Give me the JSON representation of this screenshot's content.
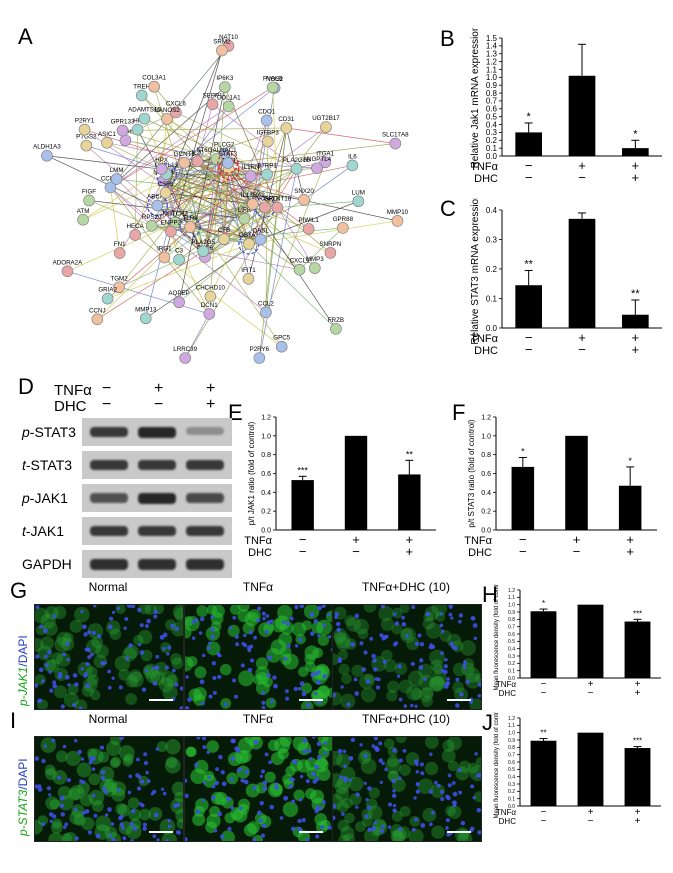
{
  "panels": {
    "A": {
      "letter": "A",
      "nodes": [
        "PYCARD",
        "NOTCH3",
        "PLCG2",
        "GSTA1",
        "NR1H4",
        "B7RP1",
        "TLR8",
        "IL20",
        "LIFR",
        "ABCA1",
        "JAK1",
        "GBP6",
        "CXCL13",
        "IL13RA2",
        "ENPP2",
        "ST6GALNAC1",
        "OASL",
        "CSF3",
        "IL1RN",
        "PLA2G5",
        "GCNT1",
        "GALNT18",
        "RPS20",
        "STAT3",
        "CFB",
        "HPX",
        "PLA2G1B",
        "IRG1",
        "CXCL6",
        "CXCL1",
        "CCL20",
        "CD31",
        "DCN1",
        "HP",
        "SNX20",
        "HECA",
        "IP6K3",
        "CCL2",
        "PTGS2",
        "ITGA1",
        "C3",
        "NANOS2",
        "PIWIL1",
        "ATM",
        "NOS2",
        "IFIT1",
        "CFH",
        "IL6",
        "TGM2",
        "SEPP1",
        "MMP3",
        "LMM",
        "IGFBP3",
        "AQPEP",
        "TREH",
        "MMP10",
        "FN1",
        "COL1A1",
        "GPC5",
        "ASIC1",
        "ANGPTL4",
        "MMP13",
        "COL3A1",
        "SNRPN",
        "FIGF",
        "CDO1",
        "CHCHD10",
        "GPR133",
        "LUM",
        "CCNJ",
        "NAT10",
        "FRZB",
        "ALDH1A3",
        "UGT2B17",
        "LRRC39",
        "ADAMTS15",
        "GPR88",
        "ADORA2A",
        "PVALB",
        "P2RY6",
        "P2RY1",
        "SLC17A8",
        "GRIA2",
        "SRM2"
      ]
    },
    "B": {
      "letter": "B",
      "chart_data": {
        "type": "bar",
        "ylabel": "Relative Jak1 mRNA expression",
        "ylim": [
          0,
          1.5
        ],
        "yticks": [
          "0.0",
          "0.1",
          "0.2",
          "0.3",
          "0.4",
          "0.5",
          "0.6",
          "0.7",
          "0.8",
          "0.9",
          "1.0",
          "1.1",
          "1.2",
          "1.3",
          "1.4",
          "1.5"
        ],
        "values": [
          0.3,
          1.02,
          0.1
        ],
        "errors": [
          0.12,
          0.4,
          0.1
        ],
        "sig": [
          "*",
          "",
          "*"
        ],
        "rows": [
          {
            "name": "TNFα",
            "signs": [
              "−",
              "+",
              "+"
            ]
          },
          {
            "name": "DHC",
            "signs": [
              "−",
              "−",
              "+"
            ]
          }
        ]
      }
    },
    "C": {
      "letter": "C",
      "chart_data": {
        "type": "bar",
        "ylabel": "Relative STAT3 mRNA expression",
        "ylim": [
          0,
          0.4
        ],
        "yticks": [
          "0.0",
          "0.1",
          "0.2",
          "0.3",
          "0.4"
        ],
        "values": [
          0.145,
          0.37,
          0.045
        ],
        "errors": [
          0.05,
          0.02,
          0.05
        ],
        "sig": [
          "**",
          "",
          "**"
        ],
        "rows": [
          {
            "name": "TNFα",
            "signs": [
              "−",
              "+",
              "+"
            ]
          },
          {
            "name": "DHC",
            "signs": [
              "−",
              "−",
              "+"
            ]
          }
        ]
      }
    },
    "D": {
      "letter": "D",
      "rows_header": [
        {
          "name": "TNFα",
          "signs": [
            "−",
            "+",
            "+"
          ]
        },
        {
          "name": "DHC",
          "signs": [
            "−",
            "−",
            "+"
          ]
        }
      ],
      "blots": [
        {
          "pre": "p",
          "name": "-STAT3",
          "intensity": [
            0.85,
            0.95,
            0.35
          ]
        },
        {
          "pre": "t",
          "name": "-STAT3",
          "intensity": [
            0.85,
            0.85,
            0.85
          ]
        },
        {
          "pre": "p",
          "name": "-JAK1",
          "intensity": [
            0.7,
            0.95,
            0.75
          ]
        },
        {
          "pre": "t",
          "name": "-JAK1",
          "intensity": [
            0.85,
            0.85,
            0.85
          ]
        },
        {
          "pre": "",
          "name": "GAPDH",
          "intensity": [
            0.9,
            0.9,
            0.9
          ]
        }
      ]
    },
    "E": {
      "letter": "E",
      "chart_data": {
        "type": "bar",
        "ylabel": "p/t JAK1 ratio (fold of control)",
        "ylim": [
          0,
          1.2
        ],
        "yticks": [
          "0.0",
          "0.2",
          "0.4",
          "0.6",
          "0.8",
          "1.0",
          "1.2"
        ],
        "values": [
          0.53,
          1.0,
          0.59
        ],
        "errors": [
          0.04,
          0.0,
          0.15
        ],
        "sig": [
          "***",
          "",
          "**"
        ],
        "rows": [
          {
            "name": "TNFα",
            "signs": [
              "−",
              "+",
              "+"
            ]
          },
          {
            "name": "DHC",
            "signs": [
              "−",
              "−",
              "+"
            ]
          }
        ]
      }
    },
    "F": {
      "letter": "F",
      "chart_data": {
        "type": "bar",
        "ylabel": "p/t STAT3 ratio (fold of control)",
        "ylim": [
          0,
          1.2
        ],
        "yticks": [
          "0.0",
          "0.2",
          "0.4",
          "0.6",
          "0.8",
          "1.0",
          "1.2"
        ],
        "values": [
          0.67,
          1.0,
          0.47
        ],
        "errors": [
          0.1,
          0.0,
          0.2
        ],
        "sig": [
          "*",
          "",
          "*"
        ],
        "rows": [
          {
            "name": "TNFα",
            "signs": [
              "−",
              "+",
              "+"
            ]
          },
          {
            "name": "DHC",
            "signs": [
              "−",
              "−",
              "+"
            ]
          }
        ]
      }
    },
    "G": {
      "letter": "G",
      "headers": [
        "Normal",
        "TNFα",
        "TNFα+DHC (10)"
      ],
      "side_label_green": "p-JAK1",
      "side_label_blue": "/DAPI"
    },
    "H": {
      "letter": "H",
      "chart_data": {
        "type": "bar",
        "ylabel": "Mean fluorescence density (fold of control)",
        "ylim": [
          0,
          1.2
        ],
        "yticks": [
          "0.0",
          "0.1",
          "0.2",
          "0.3",
          "0.4",
          "0.5",
          "0.6",
          "0.7",
          "0.8",
          "0.9",
          "1.0",
          "1.1",
          "1.2"
        ],
        "values": [
          0.91,
          1.0,
          0.77
        ],
        "errors": [
          0.03,
          0.0,
          0.03
        ],
        "sig": [
          "*",
          "",
          "***"
        ],
        "rows": [
          {
            "name": "TNFα",
            "signs": [
              "−",
              "+",
              "+"
            ]
          },
          {
            "name": "DHC",
            "signs": [
              "−",
              "−",
              "+"
            ]
          }
        ]
      }
    },
    "I": {
      "letter": "I",
      "headers": [
        "Normal",
        "TNFα",
        "TNFα+DHC (10)"
      ],
      "side_label_green": "p-STAT3",
      "side_label_blue": "/DAPI"
    },
    "J": {
      "letter": "J",
      "chart_data": {
        "type": "bar",
        "ylabel": "Mean fluorescence density (fold of control)",
        "ylim": [
          0,
          1.2
        ],
        "yticks": [
          "0.0",
          "0.1",
          "0.2",
          "0.3",
          "0.4",
          "0.5",
          "0.6",
          "0.7",
          "0.8",
          "0.9",
          "1.0",
          "1.1",
          "1.2"
        ],
        "values": [
          0.89,
          1.0,
          0.79
        ],
        "errors": [
          0.03,
          0.0,
          0.02
        ],
        "sig": [
          "**",
          "",
          "***"
        ],
        "rows": [
          {
            "name": "TNFα",
            "signs": [
              "−",
              "+",
              "+"
            ]
          },
          {
            "name": "DHC",
            "signs": [
              "−",
              "−",
              "+"
            ]
          }
        ]
      }
    }
  }
}
